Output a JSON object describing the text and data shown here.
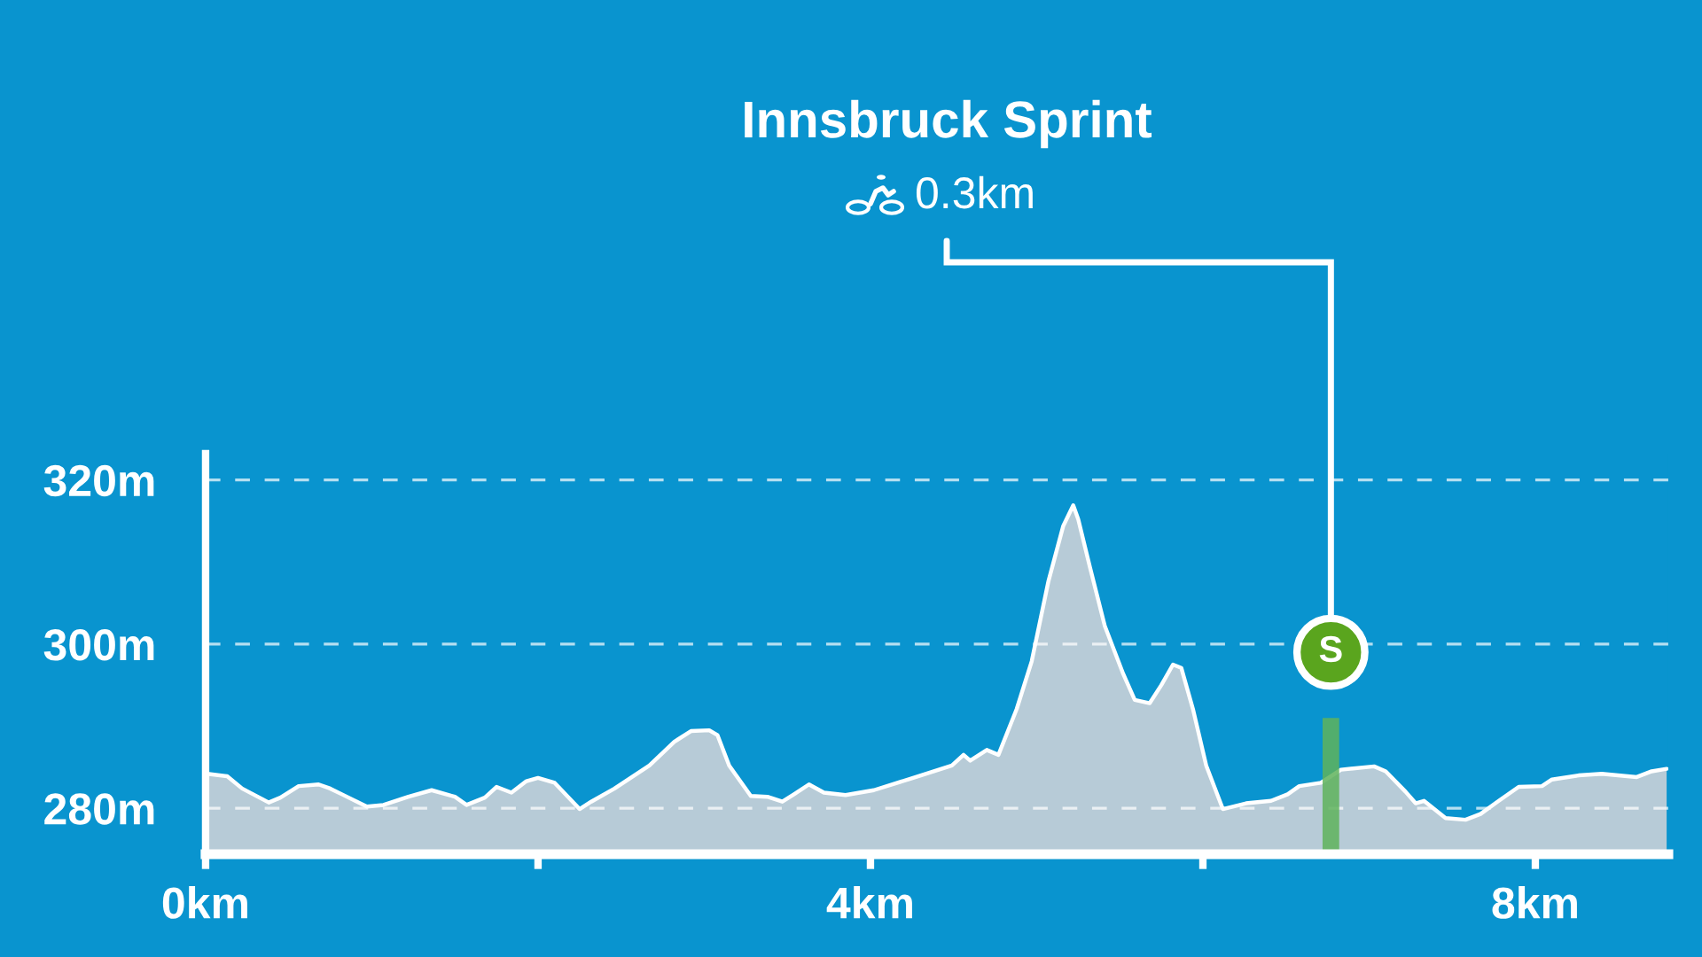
{
  "chart_data": {
    "type": "area",
    "title": "Innsbruck Sprint",
    "subtitle": "0.3km",
    "annotations": [
      {
        "text": "S",
        "x": 6.77,
        "y": 299
      }
    ],
    "xlim": [
      0,
      8.8
    ],
    "ylim": [
      274.4,
      323.2
    ],
    "xticks": [
      {
        "value": 0,
        "label": "0km"
      },
      {
        "value": 2,
        "label": null
      },
      {
        "value": 4,
        "label": "4km"
      },
      {
        "value": 6,
        "label": null
      },
      {
        "value": 8,
        "label": "8km"
      }
    ],
    "yticks": [
      {
        "value": 280,
        "label": "280m"
      },
      {
        "value": 300,
        "label": "300m"
      },
      {
        "value": 320,
        "label": "320m"
      }
    ],
    "grid": "y",
    "marker": "none",
    "line_style": "solid",
    "series": [
      {
        "color": "#b7cbd7",
        "x": [
          0.01,
          0.13,
          0.22,
          0.38,
          0.45,
          0.56,
          0.68,
          0.75,
          0.82,
          0.97,
          1.07,
          1.22,
          1.36,
          1.5,
          1.57,
          1.68,
          1.75,
          1.84,
          1.93,
          2.0,
          2.1,
          2.18,
          2.25,
          2.32,
          2.46,
          2.67,
          2.82,
          2.92,
          3.03,
          3.08,
          3.15,
          3.28,
          3.38,
          3.47,
          3.54,
          3.63,
          3.72,
          3.85,
          4.02,
          4.24,
          4.49,
          4.56,
          4.6,
          4.7,
          4.77,
          4.88,
          4.97,
          5.07,
          5.16,
          5.22,
          5.25,
          5.32,
          5.41,
          5.52,
          5.59,
          5.68,
          5.75,
          5.82,
          5.87,
          5.94,
          6.02,
          6.12,
          6.26,
          6.41,
          6.51,
          6.58,
          6.71,
          6.83,
          7.03,
          7.1,
          7.22,
          7.28,
          7.33,
          7.46,
          7.58,
          7.67,
          7.78,
          7.9,
          8.04,
          8.1,
          8.26,
          8.4,
          8.61,
          8.7,
          8.79
        ],
        "values": [
          284.2,
          283.9,
          282.4,
          280.7,
          281.3,
          282.7,
          282.9,
          282.4,
          281.7,
          280.2,
          280.4,
          281.4,
          282.2,
          281.4,
          280.4,
          281.3,
          282.6,
          281.9,
          283.3,
          283.7,
          283.1,
          281.4,
          279.9,
          280.8,
          282.4,
          285.2,
          288.1,
          289.4,
          289.5,
          288.9,
          285.2,
          281.5,
          281.4,
          280.8,
          281.7,
          282.9,
          281.9,
          281.6,
          282.2,
          283.6,
          285.2,
          286.5,
          285.8,
          287.1,
          286.5,
          292.1,
          297.9,
          307.6,
          314.4,
          316.9,
          315.2,
          309.4,
          302.2,
          296.4,
          293.2,
          292.8,
          295.0,
          297.5,
          297.1,
          292.1,
          285.2,
          279.9,
          280.6,
          280.9,
          281.7,
          282.7,
          283.1,
          284.7,
          285.1,
          284.5,
          282.0,
          280.6,
          280.9,
          278.8,
          278.6,
          279.3,
          280.9,
          282.6,
          282.7,
          283.5,
          284.0,
          284.2,
          283.8,
          284.5,
          284.8
        ]
      },
      {
        "type": "bar",
        "color": "#5fb35c",
        "x": [
          6.77
        ],
        "base": [
          274.4
        ],
        "values": [
          16.6
        ]
      }
    ]
  }
}
